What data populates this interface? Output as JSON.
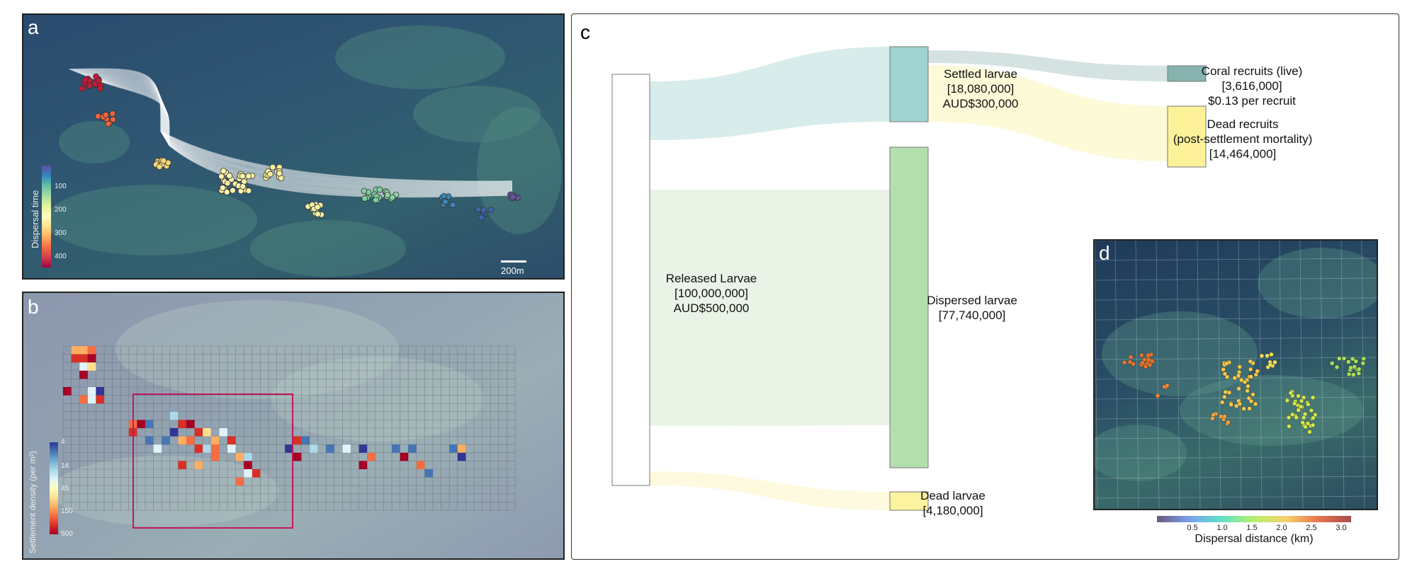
{
  "panel_a": {
    "letter": "a",
    "colorbar_title": "Dispersal time",
    "colorbar_ticks": [
      "100",
      "200",
      "300",
      "400"
    ],
    "scale_bar": "200m"
  },
  "panel_b": {
    "letter": "b",
    "colorbar_title": "Settlement density (per m²)",
    "colorbar_ticks": [
      "4",
      "14",
      "45",
      "150",
      "500"
    ]
  },
  "panel_c": {
    "letter": "c",
    "nodes": {
      "released": {
        "name": "Released Larvae",
        "count": "[100,000,000]",
        "cost": "AUD$500,000",
        "color": "#ffffff"
      },
      "settled": {
        "name": "Settled larvae",
        "count": "[18,080,000]",
        "cost": "AUD$300,000",
        "color": "#9fd3cf"
      },
      "dispersed": {
        "name": "Dispersed larvae",
        "count": "[77,740,000]",
        "color": "#b3dfae"
      },
      "dead_larvae": {
        "name": "Dead larvae",
        "count": "[4,180,000]",
        "color": "#fbf3a0"
      },
      "coral_recruits": {
        "name": "Coral recruits (live)",
        "count": "[3,616,000]",
        "cost": "$0.13 per recruit",
        "color": "#86b3ad"
      },
      "dead_recruits": {
        "name": "Dead recruits",
        "note": "(post-settlement mortality)",
        "count": "[14,464,000]",
        "color": "#fdf29a"
      }
    }
  },
  "panel_d": {
    "letter": "d",
    "colorbar_title": "Dispersal distance (km)",
    "colorbar_ticks": [
      "0.5",
      "1.0",
      "1.5",
      "2.0",
      "2.5",
      "3.0"
    ]
  }
}
